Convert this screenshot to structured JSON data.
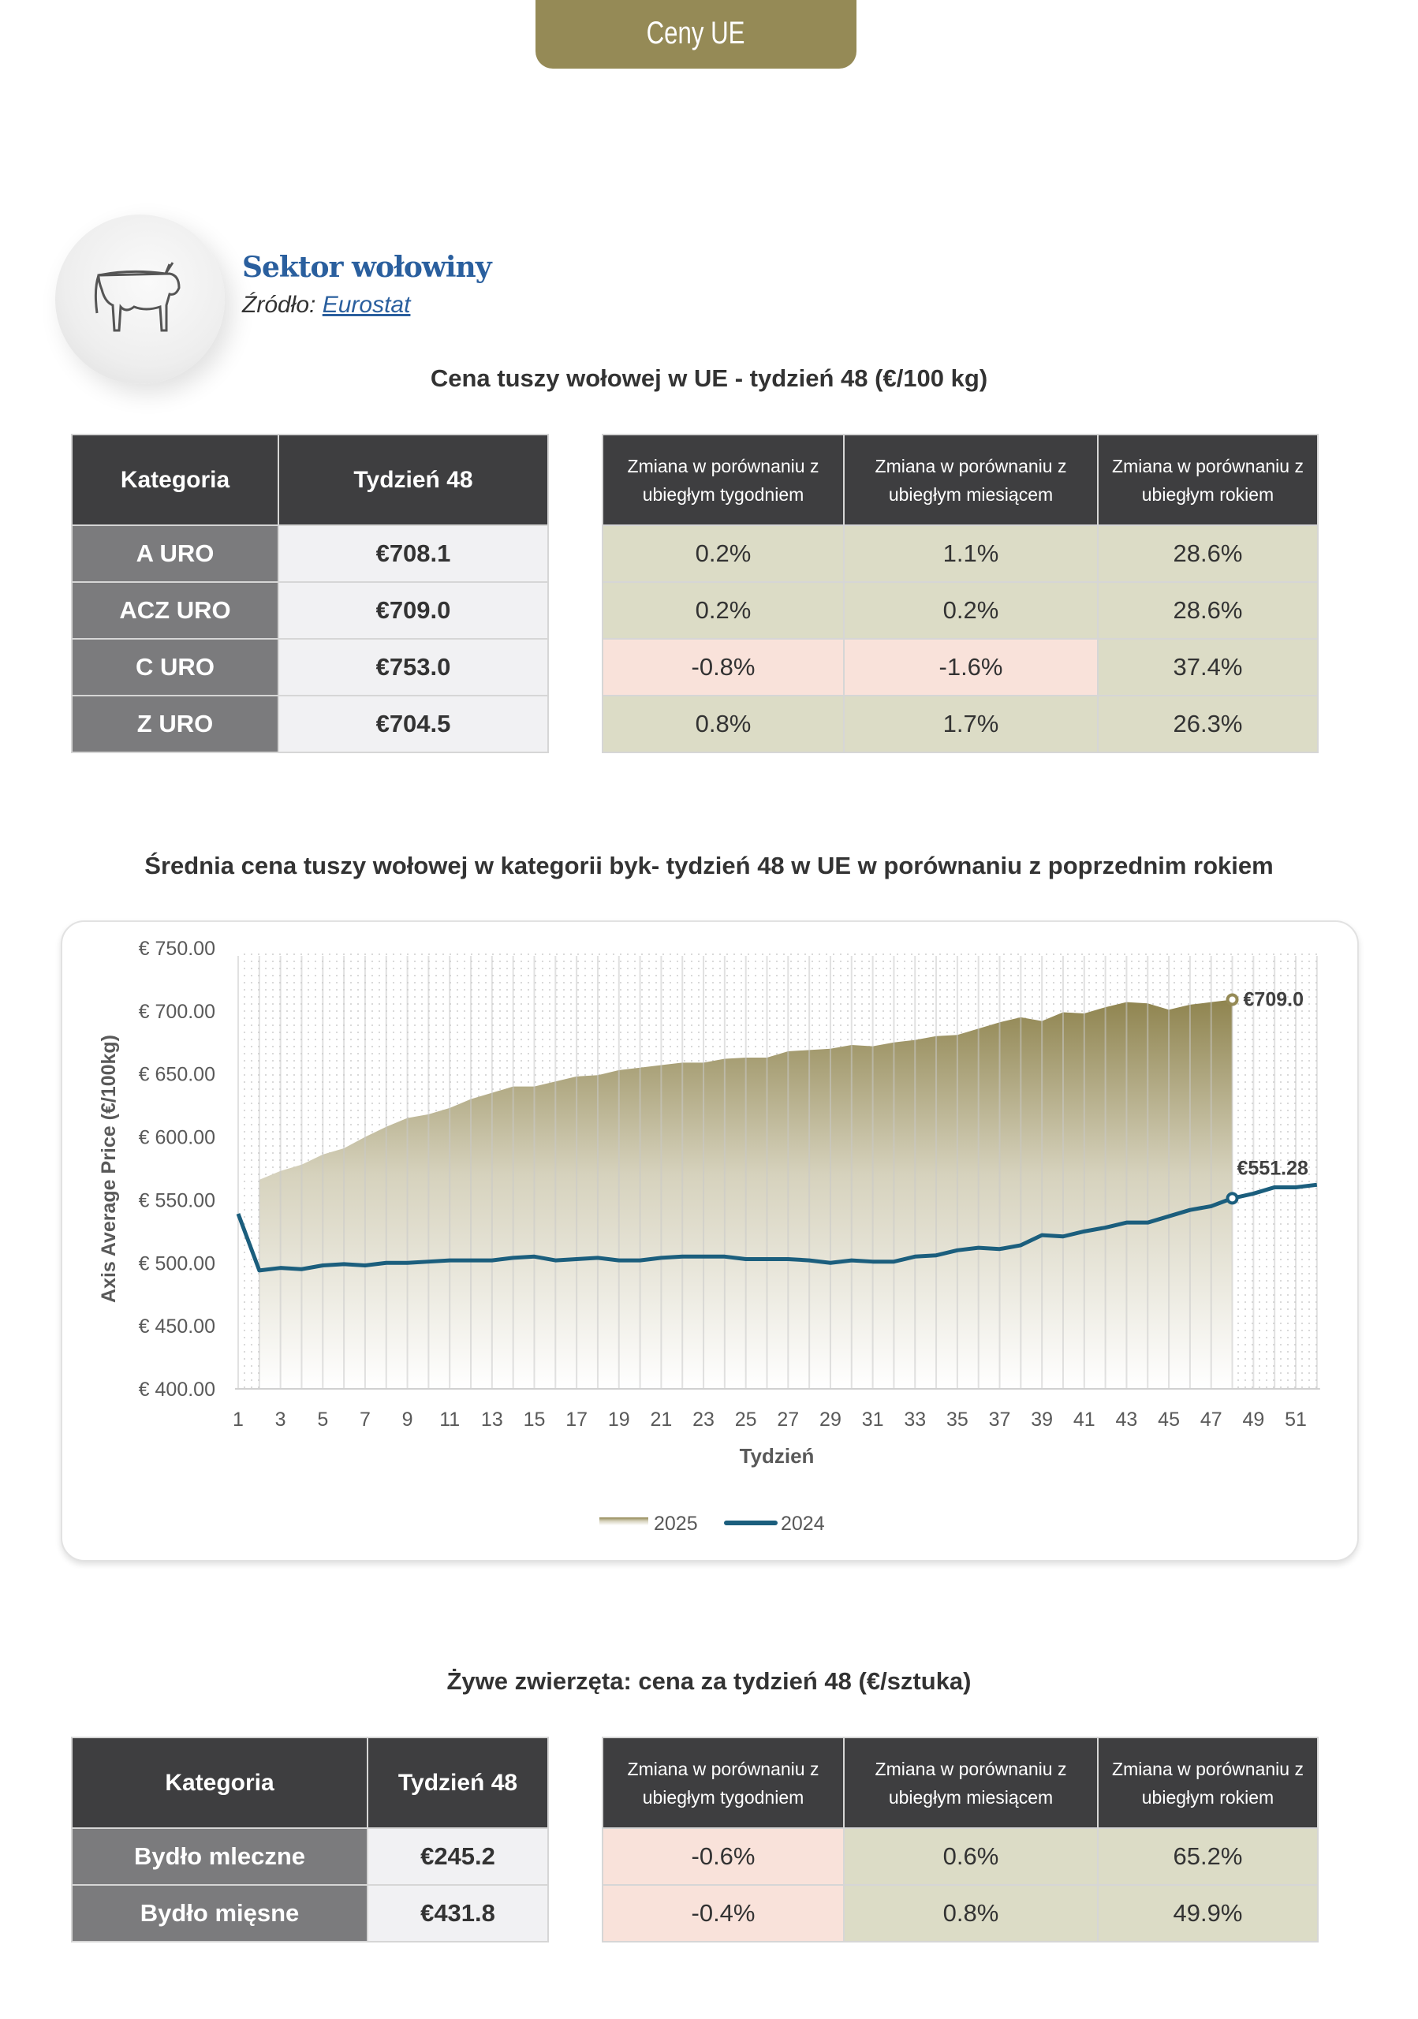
{
  "header": {
    "tab_label": "Ceny UE",
    "accent": "#958a56"
  },
  "sector": {
    "title": "Sektor wołowiny",
    "source_label": "Źródło:",
    "source_link": "Eurostat",
    "icon": "cow-icon"
  },
  "carcass_table": {
    "title": "Cena tuszy wołowej w UE - tydzień 48 (€/100 kg)",
    "headers": [
      "Kategoria",
      "Tydzień 48",
      "Zmiana w porównaniu z ubiegłym tygodniem",
      "Zmiana w porównaniu z ubiegłym miesiącem",
      "Zmiana w porównaniu z ubiegłym rokiem"
    ],
    "rows": [
      {
        "category": "A URO",
        "price": "€708.1",
        "week": "0.2%",
        "month": "1.1%",
        "year": "28.6%"
      },
      {
        "category": "ACZ URO",
        "price": "€709.0",
        "week": "0.2%",
        "month": "0.2%",
        "year": "28.6%"
      },
      {
        "category": "C URO",
        "price": "€753.0",
        "week": "-0.8%",
        "month": "-1.6%",
        "year": "37.4%"
      },
      {
        "category": "Z URO",
        "price": "€704.5",
        "week": "0.8%",
        "month": "1.7%",
        "year": "26.3%"
      }
    ]
  },
  "chart_title": "Średnia cena tuszy wołowej w kategorii byk- tydzień 48 w UE w porównaniu z poprzednim rokiem",
  "chart_data": {
    "type": "area",
    "xlabel": "Tydzień",
    "ylabel": "Axis Average Price (€/100kg)",
    "ylim": [
      400,
      750
    ],
    "yticks": [
      "€ 400.00",
      "€ 450.00",
      "€ 500.00",
      "€ 550.00",
      "€ 600.00",
      "€ 650.00",
      "€ 700.00",
      "€ 750.00"
    ],
    "xticks": [
      "1",
      "3",
      "5",
      "7",
      "9",
      "11",
      "13",
      "15",
      "17",
      "19",
      "21",
      "23",
      "25",
      "27",
      "29",
      "31",
      "33",
      "35",
      "37",
      "39",
      "41",
      "43",
      "45",
      "47",
      "49",
      "51"
    ],
    "grid": "dotted",
    "legend": "bottom",
    "series": [
      {
        "name": "2025",
        "type": "area",
        "color": "#958a56",
        "start_week": 2,
        "values": [
          566,
          573,
          578,
          586,
          591,
          600,
          608,
          615,
          618,
          623,
          630,
          635,
          640,
          640,
          644,
          648,
          649,
          653,
          655,
          657,
          659,
          659,
          662,
          663,
          663,
          668,
          669,
          670,
          673,
          672,
          675,
          677,
          680,
          681,
          686,
          691,
          695,
          692,
          699,
          698,
          703,
          707,
          706,
          701,
          705,
          707,
          709.0
        ],
        "label": "€709.0"
      },
      {
        "name": "2024",
        "type": "line",
        "color": "#1b5e7d",
        "start_week": 1,
        "values": [
          539,
          494,
          496,
          495,
          498,
          499,
          498,
          500,
          500,
          501,
          502,
          502,
          502,
          504,
          505,
          502,
          503,
          504,
          502,
          502,
          504,
          505,
          505,
          505,
          503,
          503,
          503,
          502,
          500,
          502,
          501,
          501,
          505,
          506,
          510,
          512,
          511,
          514,
          522,
          521,
          525,
          528,
          532,
          532,
          537,
          542,
          545,
          551.28,
          555,
          560,
          560,
          562
        ],
        "label": "€551.28"
      }
    ]
  },
  "live_table": {
    "title": "Żywe zwierzęta: cena za tydzień 48 (€/sztuka)",
    "headers": [
      "Kategoria",
      "Tydzień 48",
      "Zmiana w porównaniu z ubiegłym tygodniem",
      "Zmiana w porównaniu z ubiegłym miesiącem",
      "Zmiana w porównaniu z ubiegłym rokiem"
    ],
    "rows": [
      {
        "category": "Bydło mleczne",
        "price": "€245.2",
        "week": "-0.6%",
        "month": "0.6%",
        "year": "65.2%"
      },
      {
        "category": "Bydło mięsne",
        "price": "€431.8",
        "week": "-0.4%",
        "month": "0.8%",
        "year": "49.9%"
      }
    ]
  }
}
